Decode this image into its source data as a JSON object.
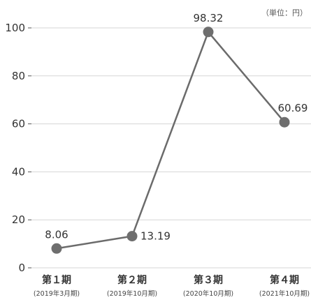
{
  "chart_data": {
    "type": "line",
    "unit_label": "（単位：円）",
    "categories": [
      "第１期",
      "第２期",
      "第３期",
      "第４期"
    ],
    "category_sublabels": [
      "(2019年3月期)",
      "(2019年10月期)",
      "(2020年10月期)",
      "(2021年10月期)"
    ],
    "values": [
      8.06,
      13.19,
      98.32,
      60.69
    ],
    "value_labels": [
      "8.06",
      "13.19",
      "98.32",
      "60.69"
    ],
    "ylim": [
      0,
      100
    ],
    "yticks": [
      0,
      20,
      40,
      60,
      80,
      100
    ],
    "grid": true,
    "colors": {
      "line": "#6b6b6b",
      "point": "#6e6e6e",
      "grid": "#d6d6d6"
    }
  }
}
